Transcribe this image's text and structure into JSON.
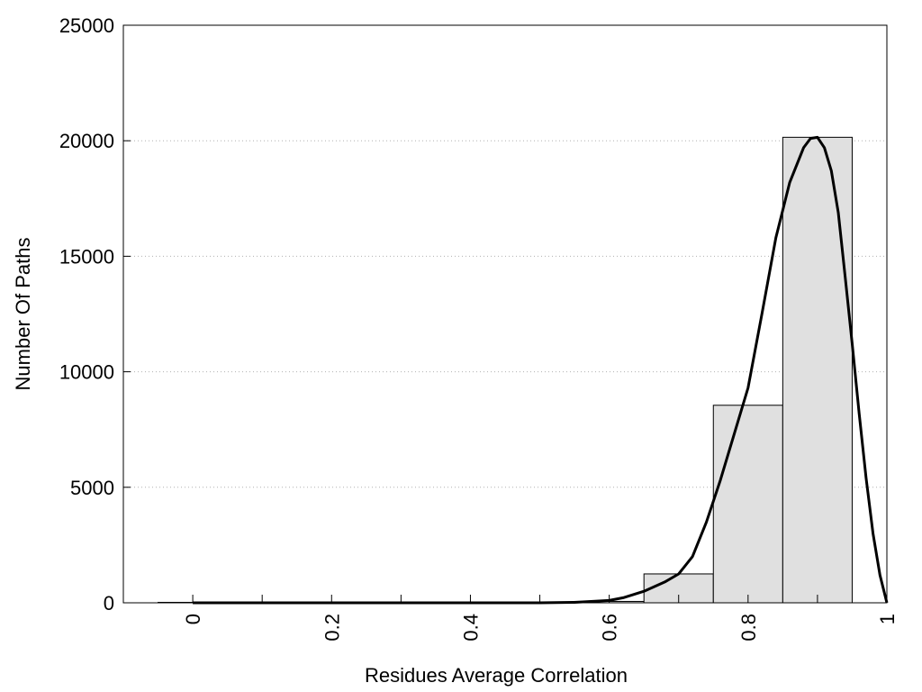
{
  "chart_data": {
    "type": "bar",
    "title": "",
    "xlabel": "Residues Average Correlation",
    "ylabel": "Number Of Paths",
    "xlim": [
      -0.1,
      1.0
    ],
    "ylim": [
      0,
      25000
    ],
    "xticks": [
      0,
      0.2,
      0.4,
      0.6,
      0.8,
      1
    ],
    "xtick_labels": [
      "0",
      "0.2",
      "0.4",
      "0.6",
      "0.8",
      "1"
    ],
    "xticks_minor": [
      0.1,
      0.3,
      0.5,
      0.7,
      0.9
    ],
    "yticks": [
      0,
      5000,
      10000,
      15000,
      20000,
      25000
    ],
    "ytick_labels": [
      "0",
      "5000",
      "10000",
      "15000",
      "20000",
      "25000"
    ],
    "grid": "horizontal-dotted",
    "bin_width": 0.1,
    "bin_centers": [
      0.0,
      0.1,
      0.2,
      0.3,
      0.4,
      0.5,
      0.6,
      0.7,
      0.8,
      0.9
    ],
    "values": [
      20,
      20,
      20,
      20,
      20,
      30,
      60,
      1250,
      8550,
      20150
    ],
    "bar_fill": "#e0e0e0",
    "bar_stroke": "#000000",
    "curve": {
      "x": [
        0.0,
        0.1,
        0.2,
        0.3,
        0.4,
        0.5,
        0.55,
        0.6,
        0.62,
        0.65,
        0.68,
        0.7,
        0.72,
        0.74,
        0.76,
        0.78,
        0.8,
        0.82,
        0.84,
        0.86,
        0.88,
        0.89,
        0.9,
        0.91,
        0.92,
        0.93,
        0.94,
        0.95,
        0.96,
        0.97,
        0.98,
        0.99,
        1.0
      ],
      "y": [
        0,
        0,
        0,
        0,
        0,
        0,
        20,
        100,
        220,
        500,
        900,
        1250,
        2000,
        3500,
        5300,
        7300,
        9300,
        12500,
        15800,
        18200,
        19700,
        20100,
        20150,
        19700,
        18700,
        16900,
        14100,
        11200,
        8200,
        5400,
        3000,
        1200,
        0
      ],
      "color": "#000000"
    }
  }
}
